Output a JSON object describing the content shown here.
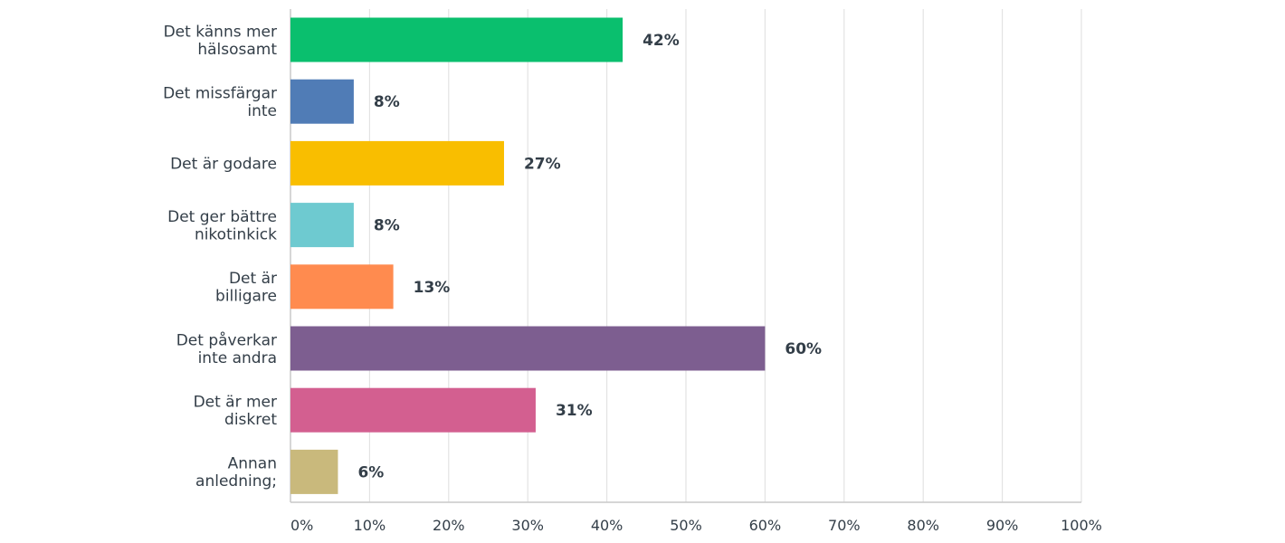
{
  "chart_data": {
    "type": "bar",
    "orientation": "horizontal",
    "title": "",
    "xlabel": "",
    "ylabel": "",
    "xlim": [
      0,
      100
    ],
    "grid": true,
    "categories": [
      [
        "Det känns mer",
        "hälsosamt"
      ],
      [
        "Det missfärgar",
        "inte"
      ],
      [
        "Det är godare"
      ],
      [
        "Det ger bättre",
        "nikotinkick"
      ],
      [
        "Det är",
        "billigare"
      ],
      [
        "Det påverkar",
        "inte andra"
      ],
      [
        "Det är mer",
        "diskret"
      ],
      [
        "Annan",
        "anledning;"
      ]
    ],
    "values": [
      42,
      8,
      27,
      8,
      13,
      60,
      31,
      6
    ],
    "value_labels": [
      "42%",
      "8%",
      "27%",
      "8%",
      "13%",
      "60%",
      "31%",
      "6%"
    ],
    "colors": [
      "#0abf6e",
      "#507cb6",
      "#f9be00",
      "#6ecad0",
      "#ff8b4f",
      "#7d5e90",
      "#d35f90",
      "#c9b97c"
    ],
    "ticks": [
      0,
      10,
      20,
      30,
      40,
      50,
      60,
      70,
      80,
      90,
      100
    ],
    "tick_labels": [
      "0%",
      "10%",
      "20%",
      "30%",
      "40%",
      "50%",
      "60%",
      "70%",
      "80%",
      "90%",
      "100%"
    ]
  }
}
